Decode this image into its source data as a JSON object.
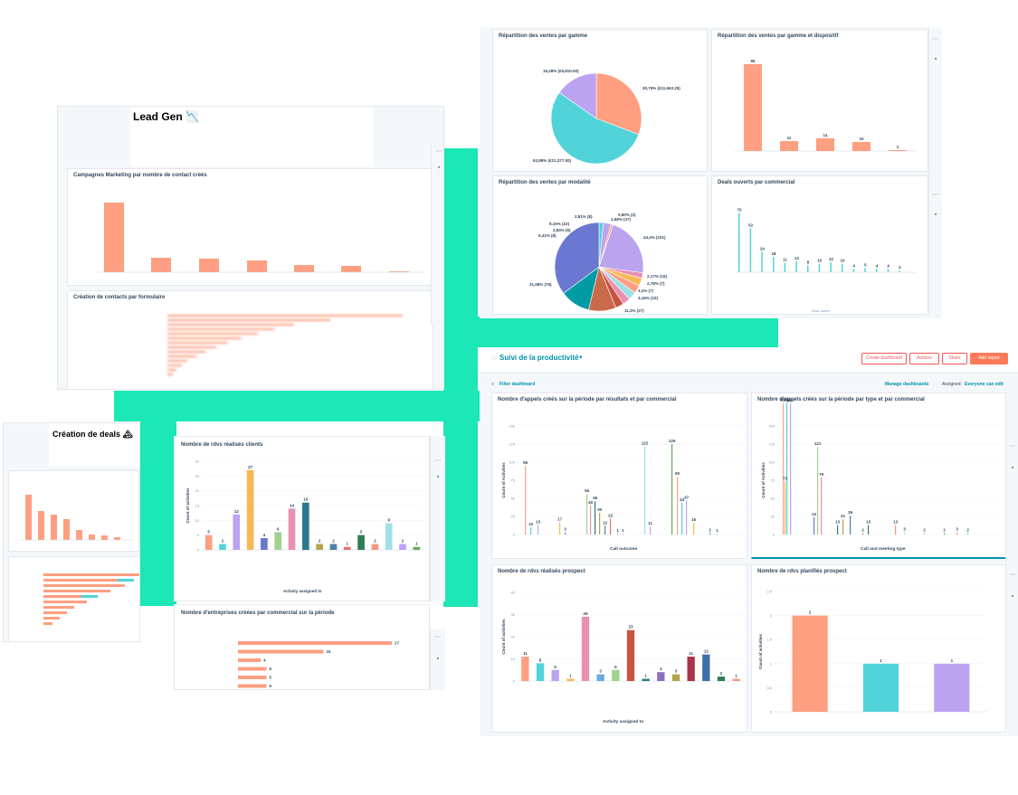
{
  "colors": {
    "accent": "#1ce7b6",
    "bar_salmon": "#fd9f80",
    "teal": "#51d3d9",
    "purple": "#bca3ef",
    "dark_teal": "#009ba4",
    "pink": "#ea90b1",
    "link": "#0091ae",
    "orange_btn": "#ff7a59"
  },
  "lead_gen": {
    "title": "Lead Gen 📉",
    "chart1_title": "Campagnes Marketing par nombre de contact créés",
    "chart2_title": "Création de contacts par formulaire"
  },
  "creation_deals": {
    "title": "Création de deals 🏔"
  },
  "top_cards": {
    "gamme": {
      "title": "Répartition des ventes par gamme",
      "labels": [
        "15,28% (€5,810.00)",
        "30,75% (€11,663.25)",
        "53,98% (€21,377.00)"
      ]
    },
    "gamme_dispositif": {
      "title": "Répartition des ventes par gamme et dispositif",
      "values": [
        96,
        11,
        14,
        10,
        1
      ]
    },
    "modalite": {
      "title": "Répartition des ventes par modalité",
      "labels": [
        "1,58% (37)",
        "2,81% (8)",
        "0,80% (2)",
        "44,4% (101)",
        "9,15% (22)",
        "2,84% (6)",
        "6,41% (8)",
        "2,17% (15)",
        "2,78% (7)",
        "3,1% (7)",
        "3,16% (10)",
        "11,2% (27)",
        "31,58% (76)"
      ]
    },
    "deals_ouverts": {
      "title": "Deals ouverts par commercial",
      "values": [
        70,
        52,
        24,
        18,
        11,
        13,
        8,
        10,
        12,
        10,
        4,
        5,
        4,
        4,
        2
      ],
      "xlabel": "Deal owner"
    }
  },
  "productivity": {
    "title": "Suivi de la productivité",
    "buttons": {
      "create": "Create dashboard",
      "actions": "Actions",
      "share": "Share",
      "add": "Add report"
    },
    "filter": "Filter dashboard",
    "manage": "Manage dashboards",
    "assigned_label": "Assigned:",
    "assigned_value": "Everyone can edit"
  },
  "appels_resultats": {
    "title": "Nombre d'appels créés sur la période par résultats et par commercial",
    "xlabel": "Call outcome",
    "ylabel": "Count of Activities",
    "yticks": [
      "0",
      "25",
      "50",
      "75",
      "100",
      "125",
      "150"
    ],
    "labels": [
      "95",
      "10",
      "13",
      "17",
      "3",
      "56",
      "40",
      "46",
      "30",
      "12",
      "22",
      "1",
      "1",
      "122",
      "11",
      "125",
      "80",
      "44",
      "47",
      "16",
      "2",
      "1"
    ]
  },
  "appels_type": {
    "title": "Nombre d'appels créés sur la période par type et par commercial",
    "xlabel": "Call and meeting type",
    "ylabel": "Count of Activities",
    "yticks": [
      "0",
      "25",
      "50",
      "75",
      "100",
      "125",
      "150"
    ],
    "labels": [
      "182",
      "182",
      "181",
      "73",
      "24",
      "121",
      "79",
      "13",
      "21",
      "26",
      "2",
      "13",
      "13",
      "3",
      "2",
      "2",
      "3",
      "2"
    ]
  },
  "rdvs_clients": {
    "title": "Nombre de rdvs réalisés clients",
    "xlabel": "Activity assigned to",
    "ylabel": "Count of activities",
    "yticks": [
      "0",
      "5",
      "10",
      "15",
      "20",
      "25",
      "30"
    ],
    "values": [
      5,
      2,
      12,
      27,
      4,
      6,
      14,
      16,
      2,
      2,
      1,
      5,
      2,
      9,
      2,
      1
    ]
  },
  "entreprises": {
    "title": "Nombre d'entreprises créées par commercial sur la période",
    "values": [
      27,
      15,
      4,
      5,
      5,
      5
    ]
  },
  "rdvs_prospect": {
    "title": "Nombre de rdvs réalisés prospect",
    "xlabel": "Activity assigned to",
    "ylabel": "Count of activities",
    "yticks": [
      "0",
      "10",
      "20",
      "30",
      "40"
    ],
    "values": [
      11,
      8,
      5,
      1,
      29,
      3,
      5,
      23,
      1,
      4,
      3,
      11,
      12,
      2,
      1
    ]
  },
  "rdvs_planifies": {
    "title": "Nombre de rdvs planifiés prospect",
    "ylabel": "Count of activities",
    "yticks": [
      "0",
      "0.5",
      "1",
      "1.5",
      "2",
      "2.5"
    ],
    "values": [
      2,
      1,
      1
    ]
  }
}
